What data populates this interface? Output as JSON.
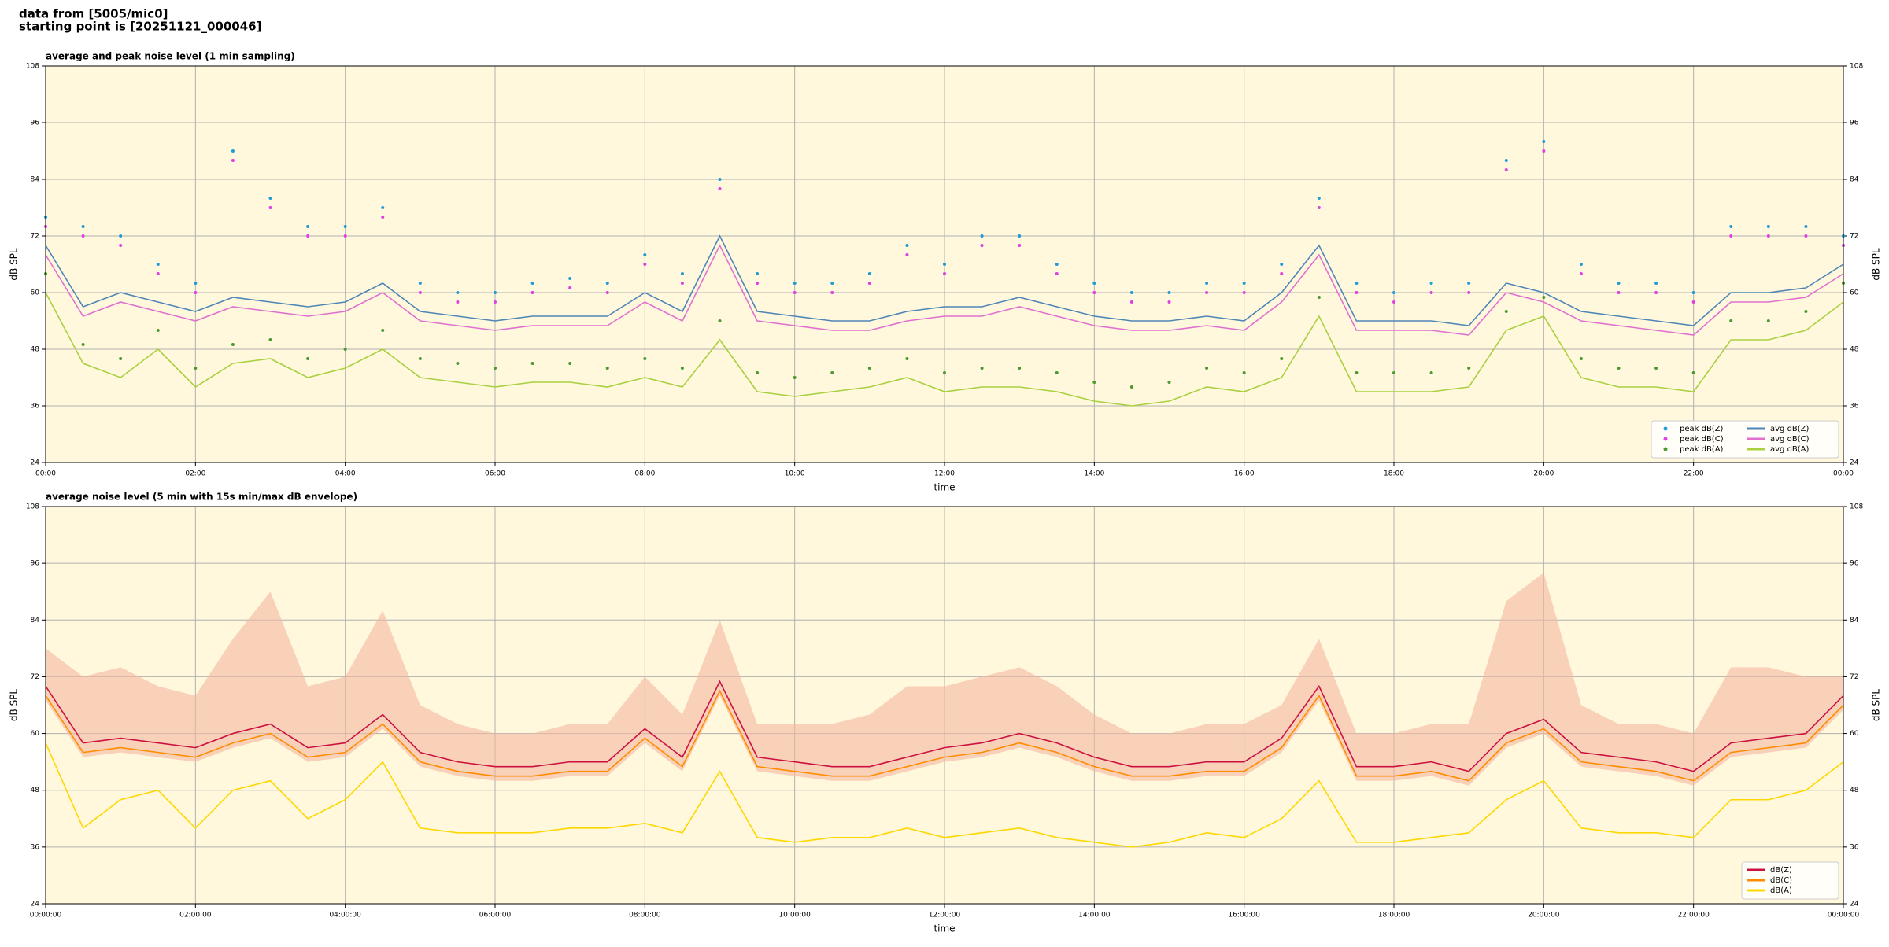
{
  "header": {
    "lines": [
      "data from [5005/mic0]",
      "starting point is [20251121_000046]"
    ]
  },
  "chart_data": [
    {
      "type": "line",
      "title": "average and peak noise level (1 min sampling)",
      "xlabel": "time",
      "ylabel": "dB SPL",
      "x": [
        0,
        30,
        60,
        90,
        120,
        150,
        180,
        210,
        240,
        270,
        300,
        330,
        360,
        390,
        420,
        450,
        480,
        510,
        540,
        570,
        600,
        630,
        660,
        690,
        720,
        750,
        780,
        810,
        840,
        870,
        900,
        930,
        960,
        990,
        1020,
        1050,
        1080,
        1110,
        1140,
        1170,
        1200,
        1230,
        1260,
        1290,
        1320,
        1350,
        1380,
        1410,
        1440
      ],
      "xlim": [
        0,
        1440
      ],
      "xticks": [
        {
          "value": 0,
          "label": "00:00"
        },
        {
          "value": 120,
          "label": "02:00"
        },
        {
          "value": 240,
          "label": "04:00"
        },
        {
          "value": 360,
          "label": "06:00"
        },
        {
          "value": 480,
          "label": "08:00"
        },
        {
          "value": 600,
          "label": "10:00"
        },
        {
          "value": 720,
          "label": "12:00"
        },
        {
          "value": 840,
          "label": "14:00"
        },
        {
          "value": 960,
          "label": "16:00"
        },
        {
          "value": 1080,
          "label": "18:00"
        },
        {
          "value": 1200,
          "label": "20:00"
        },
        {
          "value": 1320,
          "label": "22:00"
        },
        {
          "value": 1440,
          "label": "00:00"
        }
      ],
      "ylim": [
        24,
        108
      ],
      "yticks": [
        24,
        36,
        48,
        60,
        72,
        84,
        96,
        108
      ],
      "grid": true,
      "legend": "lower right",
      "legend_columns": 2,
      "background": "#fff8dc",
      "series": [
        {
          "name": "peak dB(Z)",
          "color": "#1f9bd6",
          "mode": "markers",
          "values": [
            76,
            74,
            72,
            66,
            62,
            90,
            80,
            74,
            74,
            78,
            62,
            60,
            60,
            62,
            63,
            62,
            68,
            64,
            84,
            64,
            62,
            62,
            64,
            70,
            66,
            72,
            72,
            66,
            62,
            60,
            60,
            62,
            62,
            66,
            80,
            62,
            60,
            62,
            62,
            88,
            92,
            66,
            62,
            62,
            60,
            74,
            74,
            74,
            72
          ]
        },
        {
          "name": "peak dB(C)",
          "color": "#e040e0",
          "mode": "markers",
          "values": [
            74,
            72,
            70,
            64,
            60,
            88,
            78,
            72,
            72,
            76,
            60,
            58,
            58,
            60,
            61,
            60,
            66,
            62,
            82,
            62,
            60,
            60,
            62,
            68,
            64,
            70,
            70,
            64,
            60,
            58,
            58,
            60,
            60,
            64,
            78,
            60,
            58,
            60,
            60,
            86,
            90,
            64,
            60,
            60,
            58,
            72,
            72,
            72,
            70
          ]
        },
        {
          "name": "peak dB(A)",
          "color": "#4a9a30",
          "mode": "markers",
          "values": [
            64,
            49,
            46,
            52,
            44,
            49,
            50,
            46,
            48,
            52,
            46,
            45,
            44,
            45,
            45,
            44,
            46,
            44,
            54,
            43,
            42,
            43,
            44,
            46,
            43,
            44,
            44,
            43,
            41,
            40,
            41,
            44,
            43,
            46,
            59,
            43,
            43,
            43,
            44,
            56,
            59,
            46,
            44,
            44,
            43,
            54,
            54,
            56,
            62
          ]
        },
        {
          "name": "avg dB(Z)",
          "color": "#4f86b8",
          "mode": "lines",
          "values": [
            70,
            57,
            60,
            58,
            56,
            59,
            58,
            57,
            58,
            62,
            56,
            55,
            54,
            55,
            55,
            55,
            60,
            56,
            72,
            56,
            55,
            54,
            54,
            56,
            57,
            57,
            59,
            57,
            55,
            54,
            54,
            55,
            54,
            60,
            70,
            54,
            54,
            54,
            53,
            62,
            60,
            56,
            55,
            54,
            53,
            60,
            60,
            61,
            66
          ]
        },
        {
          "name": "avg dB(C)",
          "color": "#e070d0",
          "mode": "lines",
          "values": [
            68,
            55,
            58,
            56,
            54,
            57,
            56,
            55,
            56,
            60,
            54,
            53,
            52,
            53,
            53,
            53,
            58,
            54,
            70,
            54,
            53,
            52,
            52,
            54,
            55,
            55,
            57,
            55,
            53,
            52,
            52,
            53,
            52,
            58,
            68,
            52,
            52,
            52,
            51,
            60,
            58,
            54,
            53,
            52,
            51,
            58,
            58,
            59,
            64
          ]
        },
        {
          "name": "avg dB(A)",
          "color": "#a8d040",
          "mode": "lines",
          "values": [
            60,
            45,
            42,
            48,
            40,
            45,
            46,
            42,
            44,
            48,
            42,
            41,
            40,
            41,
            41,
            40,
            42,
            40,
            50,
            39,
            38,
            39,
            40,
            42,
            39,
            40,
            40,
            39,
            37,
            36,
            37,
            40,
            39,
            42,
            55,
            39,
            39,
            39,
            40,
            52,
            55,
            42,
            40,
            40,
            39,
            50,
            50,
            52,
            58
          ]
        }
      ]
    },
    {
      "type": "line",
      "title": "average noise level (5 min with 15s min/max dB envelope)",
      "xlabel": "time",
      "ylabel": "dB SPL",
      "x": [
        0,
        30,
        60,
        90,
        120,
        150,
        180,
        210,
        240,
        270,
        300,
        330,
        360,
        390,
        420,
        450,
        480,
        510,
        540,
        570,
        600,
        630,
        660,
        690,
        720,
        750,
        780,
        810,
        840,
        870,
        900,
        930,
        960,
        990,
        1020,
        1050,
        1080,
        1110,
        1140,
        1170,
        1200,
        1230,
        1260,
        1290,
        1320,
        1350,
        1380,
        1410,
        1440
      ],
      "xlim": [
        0,
        1440
      ],
      "xticks": [
        {
          "value": 0,
          "label": "00:00:00"
        },
        {
          "value": 120,
          "label": "02:00:00"
        },
        {
          "value": 240,
          "label": "04:00:00"
        },
        {
          "value": 360,
          "label": "06:00:00"
        },
        {
          "value": 480,
          "label": "08:00:00"
        },
        {
          "value": 600,
          "label": "10:00:00"
        },
        {
          "value": 720,
          "label": "12:00:00"
        },
        {
          "value": 840,
          "label": "14:00:00"
        },
        {
          "value": 960,
          "label": "16:00:00"
        },
        {
          "value": 1080,
          "label": "18:00:00"
        },
        {
          "value": 1200,
          "label": "20:00:00"
        },
        {
          "value": 1320,
          "label": "22:00:00"
        },
        {
          "value": 1440,
          "label": "00:00:00"
        }
      ],
      "ylim": [
        24,
        108
      ],
      "yticks": [
        24,
        36,
        48,
        60,
        72,
        84,
        96,
        108
      ],
      "grid": true,
      "legend": "lower right",
      "legend_columns": 1,
      "background": "#fff8dc",
      "envelope": {
        "color": "#f4b8a0",
        "upper": [
          78,
          72,
          74,
          70,
          68,
          80,
          90,
          70,
          72,
          86,
          66,
          62,
          60,
          60,
          62,
          62,
          72,
          64,
          84,
          62,
          62,
          62,
          64,
          70,
          70,
          72,
          74,
          70,
          64,
          60,
          60,
          62,
          62,
          66,
          80,
          60,
          60,
          62,
          62,
          88,
          94,
          66,
          62,
          62,
          60,
          74,
          74,
          72,
          72
        ],
        "lower": [
          67,
          55,
          56,
          55,
          54,
          57,
          59,
          54,
          55,
          61,
          53,
          51,
          50,
          50,
          51,
          51,
          58,
          52,
          68,
          52,
          51,
          50,
          50,
          52,
          54,
          55,
          57,
          55,
          52,
          50,
          50,
          51,
          51,
          56,
          67,
          50,
          50,
          51,
          49,
          57,
          60,
          53,
          52,
          51,
          49,
          55,
          56,
          57,
          65
        ]
      },
      "series": [
        {
          "name": "dB(Z)",
          "color": "#cc1040",
          "mode": "lines",
          "values": [
            70,
            58,
            59,
            58,
            57,
            60,
            62,
            57,
            58,
            64,
            56,
            54,
            53,
            53,
            54,
            54,
            61,
            55,
            71,
            55,
            54,
            53,
            53,
            55,
            57,
            58,
            60,
            58,
            55,
            53,
            53,
            54,
            54,
            59,
            70,
            53,
            53,
            54,
            52,
            60,
            63,
            56,
            55,
            54,
            52,
            58,
            59,
            60,
            68
          ]
        },
        {
          "name": "dB(C)",
          "color": "#ff8c00",
          "mode": "lines",
          "values": [
            68,
            56,
            57,
            56,
            55,
            58,
            60,
            55,
            56,
            62,
            54,
            52,
            51,
            51,
            52,
            52,
            59,
            53,
            69,
            53,
            52,
            51,
            51,
            53,
            55,
            56,
            58,
            56,
            53,
            51,
            51,
            52,
            52,
            57,
            68,
            51,
            51,
            52,
            50,
            58,
            61,
            54,
            53,
            52,
            50,
            56,
            57,
            58,
            66
          ]
        },
        {
          "name": "dB(A)",
          "color": "#ffd700",
          "mode": "lines",
          "values": [
            58,
            40,
            46,
            48,
            40,
            48,
            50,
            42,
            46,
            54,
            40,
            39,
            39,
            39,
            40,
            40,
            41,
            39,
            52,
            38,
            37,
            38,
            38,
            40,
            38,
            39,
            40,
            38,
            37,
            36,
            37,
            39,
            38,
            42,
            50,
            37,
            37,
            38,
            39,
            46,
            50,
            40,
            39,
            39,
            38,
            46,
            46,
            48,
            54
          ]
        }
      ]
    }
  ]
}
